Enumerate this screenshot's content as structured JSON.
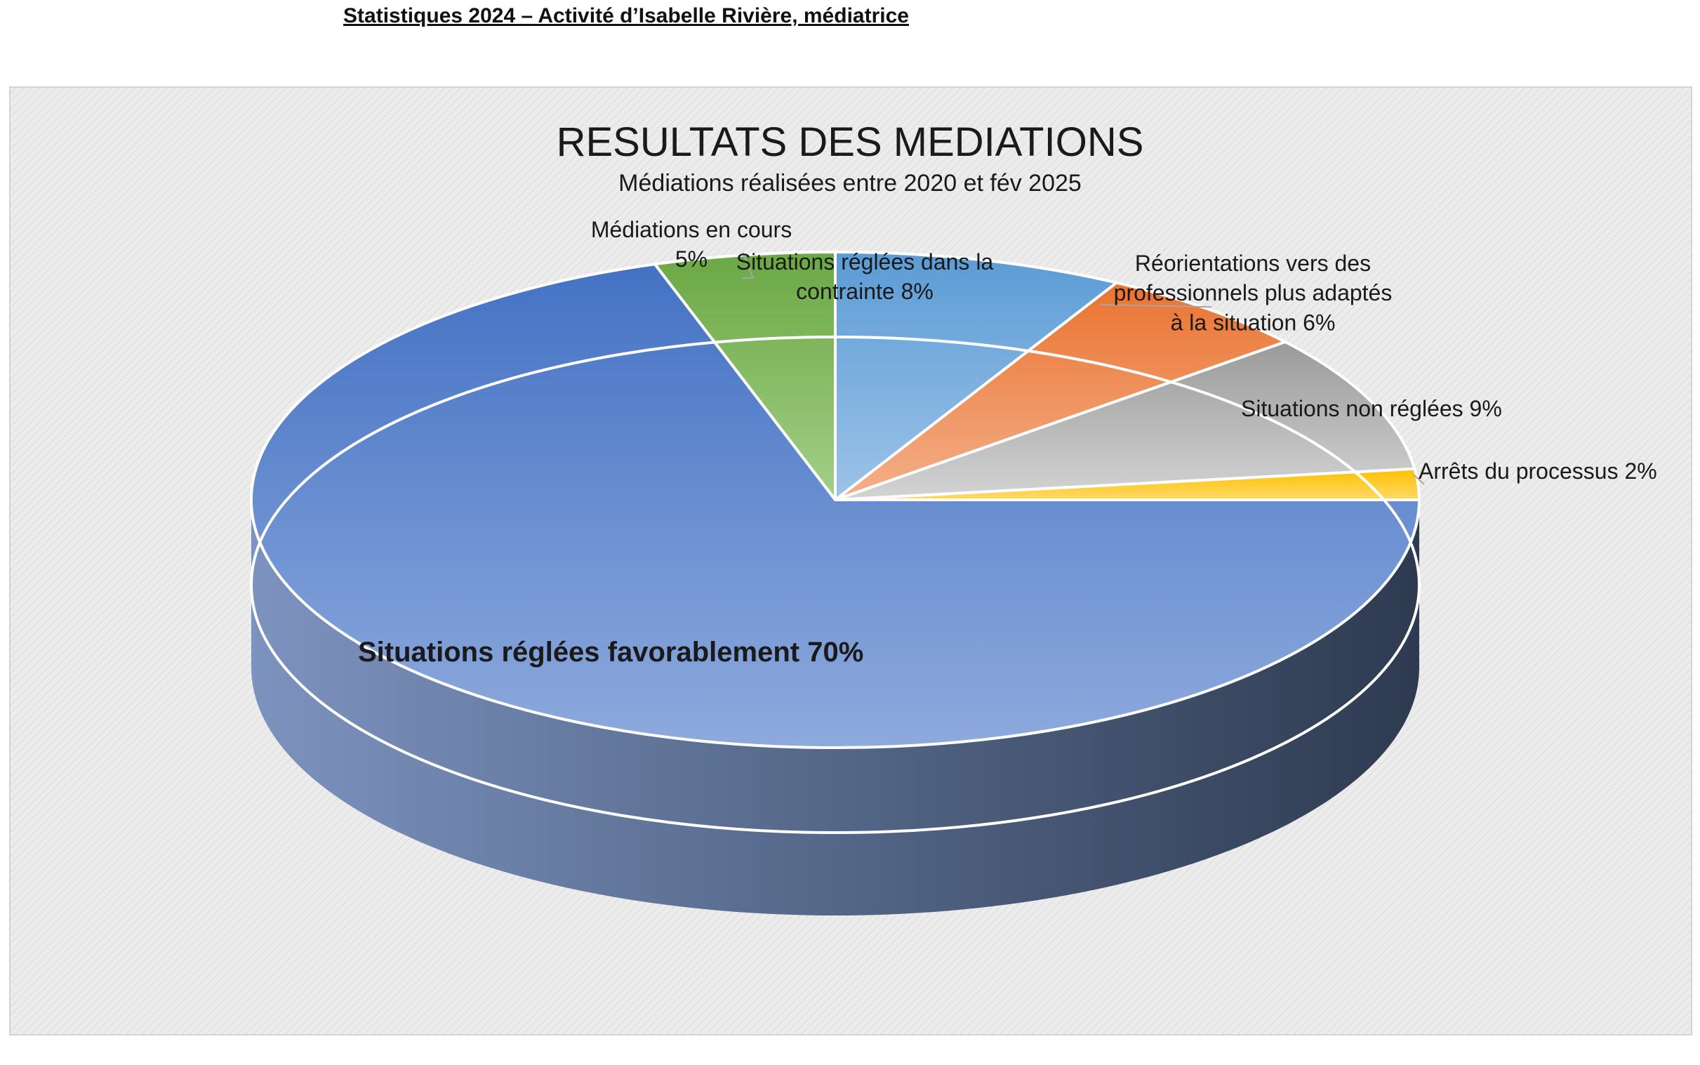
{
  "page": {
    "heading": "Statistiques 2024 – Activité d’Isabelle Rivière, médiatrice"
  },
  "chart_data": {
    "type": "pie",
    "style": "3d",
    "title": "RESULTATS DES MEDIATIONS",
    "subtitle": "Médiations réalisées entre 2020 et fév 2025",
    "series": [
      {
        "name": "Médiations en cours",
        "value": 5,
        "label": "Médiations en cours 5%",
        "color": "#70ad47"
      },
      {
        "name": "Situations réglées dans la contrainte",
        "value": 8,
        "label": "Situations réglées dans la contrainte 8%",
        "color": "#5b9bd5"
      },
      {
        "name": "Réorientations vers des professionnels plus adaptés à la situation",
        "value": 6,
        "label": "Réorientations vers des professionnels plus adaptés à la situation 6%",
        "color": "#ed7d31"
      },
      {
        "name": "Situations non réglées",
        "value": 9,
        "label": "Situations non réglées 9%",
        "color": "#a5a5a5"
      },
      {
        "name": "Arrêts du processus",
        "value": 2,
        "label": "Arrêts du processus 2%",
        "color": "#ffc000"
      },
      {
        "name": "Situations réglées favorablement",
        "value": 70,
        "label": "Situations réglées favorablement 70%",
        "color": "#4472c4"
      }
    ],
    "legend": "none",
    "background": "#eaeaea"
  }
}
